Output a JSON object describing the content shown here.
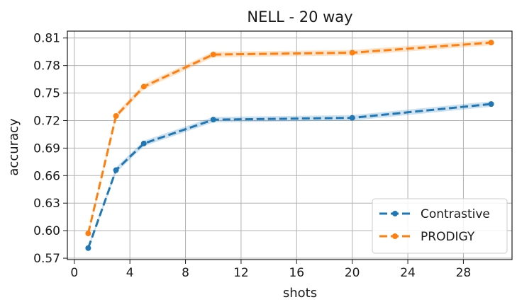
{
  "chart_data": {
    "type": "line",
    "title": "NELL - 20 way",
    "xlabel": "shots",
    "ylabel": "accuracy",
    "xlim": [
      -0.5,
      31.5
    ],
    "ylim": [
      0.5685,
      0.8175
    ],
    "xticks": [
      0,
      4,
      8,
      12,
      16,
      20,
      24,
      28
    ],
    "xtick_labels": [
      "0",
      "4",
      "8",
      "12",
      "16",
      "20",
      "24",
      "28"
    ],
    "yticks": [
      0.57,
      0.6,
      0.63,
      0.66,
      0.69,
      0.72,
      0.75,
      0.78,
      0.81
    ],
    "ytick_labels": [
      "0.57",
      "0.60",
      "0.63",
      "0.66",
      "0.69",
      "0.72",
      "0.75",
      "0.78",
      "0.81"
    ],
    "grid": true,
    "legend_position": "lower-right",
    "series": [
      {
        "name": "Contrastive",
        "color": "#1f77b4",
        "x": [
          1,
          3,
          5,
          10,
          20,
          30
        ],
        "values": [
          0.581,
          0.666,
          0.695,
          0.721,
          0.723,
          0.738
        ],
        "ci": [
          0.002,
          0.003,
          0.003,
          0.003,
          0.003,
          0.003
        ]
      },
      {
        "name": "PRODIGY",
        "color": "#ff7f0e",
        "x": [
          1,
          3,
          5,
          10,
          20,
          30
        ],
        "values": [
          0.597,
          0.725,
          0.757,
          0.792,
          0.794,
          0.805
        ],
        "ci": [
          0.002,
          0.003,
          0.003,
          0.003,
          0.003,
          0.003
        ]
      }
    ]
  }
}
